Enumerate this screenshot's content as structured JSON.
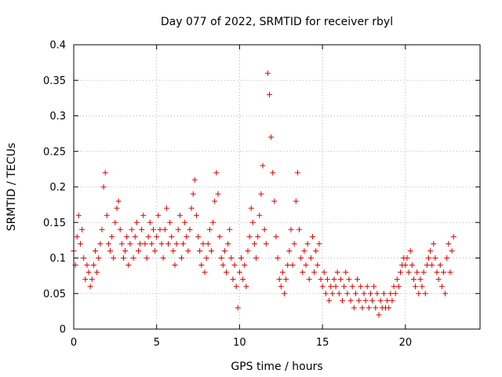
{
  "chart_data": {
    "type": "scatter",
    "title": "Day 077 of 2022, SRMTID for receiver rbyl",
    "xlabel": "GPS time / hours",
    "ylabel": "SRMTID / TECUs",
    "xlim": [
      0,
      24.5
    ],
    "ylim": [
      0,
      0.4
    ],
    "xticks": [
      0,
      5,
      10,
      15,
      20
    ],
    "xtick_labels": [
      "0",
      "5",
      "10",
      "15",
      "20"
    ],
    "yticks": [
      0,
      0.05,
      0.1,
      0.15,
      0.2,
      0.25,
      0.3,
      0.35,
      0.4
    ],
    "ytick_labels": [
      "0",
      "0.05",
      "0.1",
      "0.15",
      "0.2",
      "0.25",
      "0.3",
      "0.35",
      "0.4"
    ],
    "grid": true,
    "marker": "plus",
    "color": "#dd0000",
    "series": [
      {
        "points": [
          [
            0.0,
            0.11
          ],
          [
            0.1,
            0.09
          ],
          [
            0.2,
            0.13
          ],
          [
            0.3,
            0.16
          ],
          [
            0.4,
            0.12
          ],
          [
            0.5,
            0.14
          ],
          [
            0.6,
            0.1
          ],
          [
            0.7,
            0.07
          ],
          [
            0.8,
            0.09
          ],
          [
            0.9,
            0.08
          ],
          [
            1.0,
            0.06
          ],
          [
            1.1,
            0.07
          ],
          [
            1.2,
            0.09
          ],
          [
            1.3,
            0.11
          ],
          [
            1.4,
            0.08
          ],
          [
            1.5,
            0.1
          ],
          [
            1.6,
            0.12
          ],
          [
            1.7,
            0.14
          ],
          [
            1.8,
            0.2
          ],
          [
            1.9,
            0.22
          ],
          [
            2.0,
            0.16
          ],
          [
            2.1,
            0.12
          ],
          [
            2.2,
            0.11
          ],
          [
            2.3,
            0.13
          ],
          [
            2.4,
            0.1
          ],
          [
            2.5,
            0.15
          ],
          [
            2.6,
            0.17
          ],
          [
            2.7,
            0.18
          ],
          [
            2.8,
            0.14
          ],
          [
            2.9,
            0.12
          ],
          [
            3.0,
            0.1
          ],
          [
            3.1,
            0.11
          ],
          [
            3.2,
            0.13
          ],
          [
            3.3,
            0.09
          ],
          [
            3.4,
            0.12
          ],
          [
            3.5,
            0.14
          ],
          [
            3.6,
            0.1
          ],
          [
            3.7,
            0.13
          ],
          [
            3.8,
            0.15
          ],
          [
            3.9,
            0.11
          ],
          [
            4.0,
            0.12
          ],
          [
            4.1,
            0.14
          ],
          [
            4.2,
            0.16
          ],
          [
            4.3,
            0.12
          ],
          [
            4.4,
            0.1
          ],
          [
            4.5,
            0.13
          ],
          [
            4.6,
            0.15
          ],
          [
            4.7,
            0.12
          ],
          [
            4.8,
            0.14
          ],
          [
            4.9,
            0.11
          ],
          [
            5.0,
            0.13
          ],
          [
            5.1,
            0.16
          ],
          [
            5.2,
            0.14
          ],
          [
            5.3,
            0.12
          ],
          [
            5.4,
            0.1
          ],
          [
            5.5,
            0.14
          ],
          [
            5.6,
            0.17
          ],
          [
            5.7,
            0.12
          ],
          [
            5.8,
            0.15
          ],
          [
            5.9,
            0.13
          ],
          [
            6.0,
            0.11
          ],
          [
            6.1,
            0.09
          ],
          [
            6.2,
            0.12
          ],
          [
            6.3,
            0.14
          ],
          [
            6.4,
            0.16
          ],
          [
            6.5,
            0.1
          ],
          [
            6.6,
            0.12
          ],
          [
            6.7,
            0.15
          ],
          [
            6.8,
            0.13
          ],
          [
            6.9,
            0.11
          ],
          [
            7.0,
            0.14
          ],
          [
            7.1,
            0.17
          ],
          [
            7.2,
            0.19
          ],
          [
            7.3,
            0.21
          ],
          [
            7.4,
            0.16
          ],
          [
            7.5,
            0.13
          ],
          [
            7.6,
            0.11
          ],
          [
            7.7,
            0.09
          ],
          [
            7.8,
            0.12
          ],
          [
            7.9,
            0.08
          ],
          [
            8.0,
            0.1
          ],
          [
            8.1,
            0.12
          ],
          [
            8.2,
            0.14
          ],
          [
            8.3,
            0.11
          ],
          [
            8.4,
            0.15
          ],
          [
            8.5,
            0.18
          ],
          [
            8.6,
            0.22
          ],
          [
            8.7,
            0.19
          ],
          [
            8.8,
            0.13
          ],
          [
            8.9,
            0.1
          ],
          [
            9.0,
            0.09
          ],
          [
            9.1,
            0.11
          ],
          [
            9.2,
            0.08
          ],
          [
            9.3,
            0.12
          ],
          [
            9.4,
            0.14
          ],
          [
            9.5,
            0.1
          ],
          [
            9.6,
            0.07
          ],
          [
            9.7,
            0.09
          ],
          [
            9.8,
            0.06
          ],
          [
            9.9,
            0.03
          ],
          [
            10.0,
            0.08
          ],
          [
            10.1,
            0.1
          ],
          [
            10.2,
            0.07
          ],
          [
            10.3,
            0.09
          ],
          [
            10.4,
            0.06
          ],
          [
            10.5,
            0.11
          ],
          [
            10.6,
            0.13
          ],
          [
            10.7,
            0.17
          ],
          [
            10.8,
            0.15
          ],
          [
            10.9,
            0.12
          ],
          [
            11.0,
            0.1
          ],
          [
            11.1,
            0.13
          ],
          [
            11.2,
            0.16
          ],
          [
            11.3,
            0.19
          ],
          [
            11.4,
            0.23
          ],
          [
            11.5,
            0.14
          ],
          [
            11.6,
            0.12
          ],
          [
            11.7,
            0.36
          ],
          [
            11.8,
            0.33
          ],
          [
            11.9,
            0.27
          ],
          [
            12.0,
            0.22
          ],
          [
            12.1,
            0.18
          ],
          [
            12.2,
            0.13
          ],
          [
            12.3,
            0.1
          ],
          [
            12.4,
            0.07
          ],
          [
            12.5,
            0.06
          ],
          [
            12.6,
            0.08
          ],
          [
            12.7,
            0.05
          ],
          [
            12.8,
            0.07
          ],
          [
            12.9,
            0.09
          ],
          [
            13.0,
            0.11
          ],
          [
            13.1,
            0.14
          ],
          [
            13.2,
            0.09
          ],
          [
            13.3,
            0.12
          ],
          [
            13.4,
            0.18
          ],
          [
            13.5,
            0.22
          ],
          [
            13.6,
            0.14
          ],
          [
            13.7,
            0.1
          ],
          [
            13.8,
            0.08
          ],
          [
            13.9,
            0.11
          ],
          [
            14.0,
            0.09
          ],
          [
            14.1,
            0.12
          ],
          [
            14.2,
            0.07
          ],
          [
            14.3,
            0.1
          ],
          [
            14.4,
            0.13
          ],
          [
            14.5,
            0.08
          ],
          [
            14.6,
            0.11
          ],
          [
            14.7,
            0.09
          ],
          [
            14.8,
            0.12
          ],
          [
            14.9,
            0.07
          ],
          [
            15.0,
            0.06
          ],
          [
            15.1,
            0.08
          ],
          [
            15.2,
            0.05
          ],
          [
            15.3,
            0.07
          ],
          [
            15.4,
            0.04
          ],
          [
            15.5,
            0.06
          ],
          [
            15.6,
            0.05
          ],
          [
            15.7,
            0.07
          ],
          [
            15.8,
            0.06
          ],
          [
            15.9,
            0.08
          ],
          [
            16.0,
            0.05
          ],
          [
            16.1,
            0.07
          ],
          [
            16.2,
            0.04
          ],
          [
            16.3,
            0.06
          ],
          [
            16.4,
            0.08
          ],
          [
            16.5,
            0.05
          ],
          [
            16.6,
            0.07
          ],
          [
            16.7,
            0.04
          ],
          [
            16.8,
            0.06
          ],
          [
            16.9,
            0.03
          ],
          [
            17.0,
            0.05
          ],
          [
            17.1,
            0.07
          ],
          [
            17.2,
            0.04
          ],
          [
            17.3,
            0.06
          ],
          [
            17.4,
            0.03
          ],
          [
            17.5,
            0.05
          ],
          [
            17.6,
            0.04
          ],
          [
            17.7,
            0.06
          ],
          [
            17.8,
            0.03
          ],
          [
            17.9,
            0.05
          ],
          [
            18.0,
            0.04
          ],
          [
            18.1,
            0.06
          ],
          [
            18.2,
            0.03
          ],
          [
            18.3,
            0.05
          ],
          [
            18.4,
            0.02
          ],
          [
            18.5,
            0.04
          ],
          [
            18.6,
            0.03
          ],
          [
            18.7,
            0.05
          ],
          [
            18.8,
            0.03
          ],
          [
            18.9,
            0.04
          ],
          [
            19.0,
            0.03
          ],
          [
            19.1,
            0.05
          ],
          [
            19.2,
            0.04
          ],
          [
            19.3,
            0.06
          ],
          [
            19.4,
            0.05
          ],
          [
            19.5,
            0.07
          ],
          [
            19.6,
            0.06
          ],
          [
            19.7,
            0.08
          ],
          [
            19.8,
            0.09
          ],
          [
            19.9,
            0.1
          ],
          [
            20.0,
            0.09
          ],
          [
            20.1,
            0.1
          ],
          [
            20.2,
            0.08
          ],
          [
            20.3,
            0.11
          ],
          [
            20.4,
            0.09
          ],
          [
            20.5,
            0.07
          ],
          [
            20.6,
            0.06
          ],
          [
            20.7,
            0.08
          ],
          [
            20.8,
            0.05
          ],
          [
            20.9,
            0.07
          ],
          [
            21.0,
            0.06
          ],
          [
            21.1,
            0.08
          ],
          [
            21.2,
            0.05
          ],
          [
            21.3,
            0.09
          ],
          [
            21.4,
            0.1
          ],
          [
            21.5,
            0.11
          ],
          [
            21.6,
            0.09
          ],
          [
            21.7,
            0.12
          ],
          [
            21.8,
            0.1
          ],
          [
            21.9,
            0.08
          ],
          [
            22.0,
            0.07
          ],
          [
            22.1,
            0.09
          ],
          [
            22.2,
            0.06
          ],
          [
            22.3,
            0.08
          ],
          [
            22.4,
            0.05
          ],
          [
            22.5,
            0.1
          ],
          [
            22.6,
            0.12
          ],
          [
            22.7,
            0.08
          ],
          [
            22.8,
            0.11
          ],
          [
            22.9,
            0.13
          ]
        ]
      }
    ]
  }
}
